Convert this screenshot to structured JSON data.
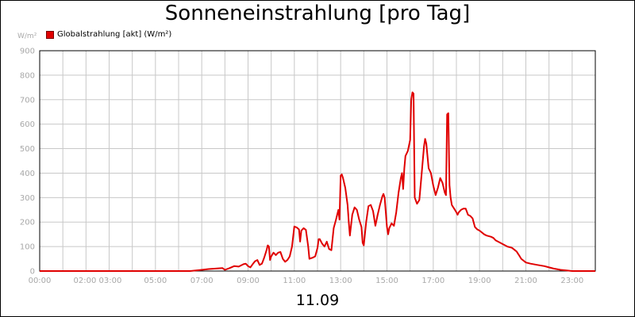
{
  "chart_data": {
    "type": "line",
    "title": "Sonneneinstrahlung [pro Tag]",
    "y_unit_label": "W/m²",
    "date_label": "11.09",
    "ylim": [
      0,
      900
    ],
    "xlim": [
      0,
      24
    ],
    "y_ticks": [
      0,
      100,
      200,
      300,
      400,
      500,
      600,
      700,
      800,
      900
    ],
    "x_ticks": [
      {
        "x": 0,
        "label": "00:00"
      },
      {
        "x": 2.5,
        "label": "02:00 03:00"
      },
      {
        "x": 5,
        "label": "05:00"
      },
      {
        "x": 7,
        "label": "07:00"
      },
      {
        "x": 9,
        "label": "09:00"
      },
      {
        "x": 11,
        "label": "11:00"
      },
      {
        "x": 13,
        "label": "13:00"
      },
      {
        "x": 15,
        "label": "15:00"
      },
      {
        "x": 17,
        "label": "17:00"
      },
      {
        "x": 19,
        "label": "19:00"
      },
      {
        "x": 21,
        "label": "21:00"
      },
      {
        "x": 23,
        "label": "23:00"
      }
    ],
    "grid": true,
    "legend_position": "top-left",
    "series": [
      {
        "name": "Globalstrahlung [akt] (W/m²)",
        "color": "#e00000",
        "points": [
          [
            0,
            0
          ],
          [
            6.5,
            0
          ],
          [
            7.0,
            5
          ],
          [
            7.3,
            8
          ],
          [
            7.6,
            10
          ],
          [
            7.9,
            12
          ],
          [
            8.0,
            5
          ],
          [
            8.2,
            12
          ],
          [
            8.4,
            20
          ],
          [
            8.6,
            18
          ],
          [
            8.8,
            28
          ],
          [
            8.9,
            30
          ],
          [
            9.0,
            20
          ],
          [
            9.1,
            15
          ],
          [
            9.2,
            28
          ],
          [
            9.3,
            40
          ],
          [
            9.4,
            45
          ],
          [
            9.5,
            25
          ],
          [
            9.6,
            30
          ],
          [
            9.7,
            55
          ],
          [
            9.8,
            85
          ],
          [
            9.85,
            105
          ],
          [
            9.9,
            100
          ],
          [
            9.95,
            45
          ],
          [
            10.0,
            60
          ],
          [
            10.1,
            75
          ],
          [
            10.2,
            65
          ],
          [
            10.3,
            75
          ],
          [
            10.4,
            78
          ],
          [
            10.5,
            50
          ],
          [
            10.6,
            38
          ],
          [
            10.7,
            45
          ],
          [
            10.8,
            60
          ],
          [
            10.9,
            100
          ],
          [
            11.0,
            182
          ],
          [
            11.1,
            178
          ],
          [
            11.2,
            170
          ],
          [
            11.25,
            120
          ],
          [
            11.3,
            165
          ],
          [
            11.4,
            175
          ],
          [
            11.5,
            168
          ],
          [
            11.6,
            100
          ],
          [
            11.65,
            50
          ],
          [
            11.8,
            55
          ],
          [
            11.9,
            60
          ],
          [
            12.0,
            95
          ],
          [
            12.05,
            130
          ],
          [
            12.1,
            130
          ],
          [
            12.2,
            112
          ],
          [
            12.3,
            100
          ],
          [
            12.4,
            120
          ],
          [
            12.5,
            90
          ],
          [
            12.6,
            85
          ],
          [
            12.7,
            175
          ],
          [
            12.8,
            210
          ],
          [
            12.9,
            250
          ],
          [
            12.95,
            210
          ],
          [
            13.0,
            390
          ],
          [
            13.05,
            395
          ],
          [
            13.1,
            380
          ],
          [
            13.2,
            340
          ],
          [
            13.3,
            270
          ],
          [
            13.35,
            200
          ],
          [
            13.4,
            145
          ],
          [
            13.5,
            230
          ],
          [
            13.6,
            260
          ],
          [
            13.7,
            250
          ],
          [
            13.8,
            210
          ],
          [
            13.9,
            180
          ],
          [
            13.95,
            115
          ],
          [
            14.0,
            105
          ],
          [
            14.1,
            200
          ],
          [
            14.2,
            265
          ],
          [
            14.3,
            270
          ],
          [
            14.4,
            245
          ],
          [
            14.5,
            185
          ],
          [
            14.6,
            230
          ],
          [
            14.7,
            270
          ],
          [
            14.8,
            305
          ],
          [
            14.85,
            315
          ],
          [
            14.9,
            300
          ],
          [
            15.0,
            180
          ],
          [
            15.05,
            150
          ],
          [
            15.1,
            175
          ],
          [
            15.2,
            195
          ],
          [
            15.3,
            185
          ],
          [
            15.4,
            240
          ],
          [
            15.5,
            320
          ],
          [
            15.6,
            380
          ],
          [
            15.65,
            400
          ],
          [
            15.7,
            335
          ],
          [
            15.75,
            420
          ],
          [
            15.8,
            470
          ],
          [
            15.9,
            490
          ],
          [
            16.0,
            535
          ],
          [
            16.05,
            700
          ],
          [
            16.1,
            730
          ],
          [
            16.15,
            725
          ],
          [
            16.2,
            300
          ],
          [
            16.3,
            275
          ],
          [
            16.4,
            290
          ],
          [
            16.5,
            400
          ],
          [
            16.6,
            510
          ],
          [
            16.65,
            540
          ],
          [
            16.7,
            520
          ],
          [
            16.8,
            420
          ],
          [
            16.9,
            400
          ],
          [
            17.0,
            350
          ],
          [
            17.1,
            310
          ],
          [
            17.2,
            340
          ],
          [
            17.3,
            380
          ],
          [
            17.4,
            360
          ],
          [
            17.5,
            320
          ],
          [
            17.55,
            310
          ],
          [
            17.6,
            640
          ],
          [
            17.65,
            645
          ],
          [
            17.7,
            350
          ],
          [
            17.75,
            300
          ],
          [
            17.8,
            270
          ],
          [
            17.9,
            255
          ],
          [
            18.0,
            240
          ],
          [
            18.05,
            230
          ],
          [
            18.1,
            240
          ],
          [
            18.2,
            250
          ],
          [
            18.3,
            255
          ],
          [
            18.4,
            255
          ],
          [
            18.5,
            230
          ],
          [
            18.6,
            225
          ],
          [
            18.7,
            215
          ],
          [
            18.8,
            180
          ],
          [
            18.9,
            170
          ],
          [
            19.0,
            165
          ],
          [
            19.2,
            150
          ],
          [
            19.3,
            145
          ],
          [
            19.5,
            140
          ],
          [
            19.6,
            135
          ],
          [
            19.7,
            125
          ],
          [
            19.8,
            120
          ],
          [
            20.0,
            110
          ],
          [
            20.2,
            100
          ],
          [
            20.4,
            95
          ],
          [
            20.6,
            80
          ],
          [
            20.7,
            65
          ],
          [
            20.8,
            50
          ],
          [
            21.0,
            35
          ],
          [
            21.2,
            30
          ],
          [
            21.5,
            25
          ],
          [
            21.8,
            20
          ],
          [
            22.0,
            15
          ],
          [
            22.2,
            10
          ],
          [
            22.5,
            5
          ],
          [
            22.8,
            2
          ],
          [
            23.0,
            0
          ],
          [
            24,
            0
          ]
        ]
      }
    ]
  }
}
